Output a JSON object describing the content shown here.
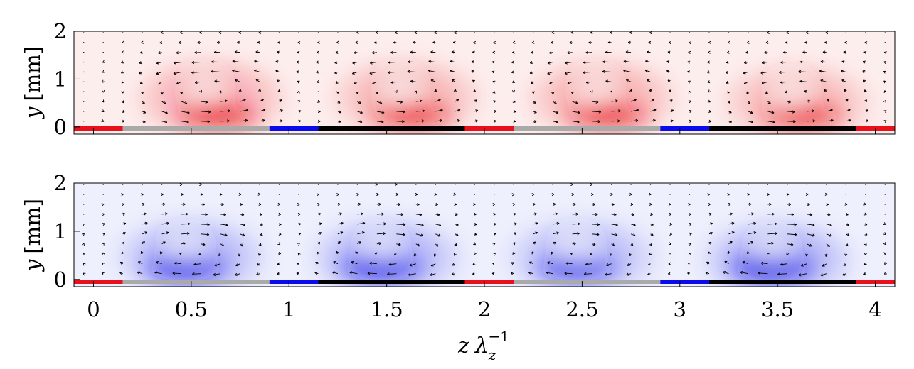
{
  "chart_data": [
    {
      "type": "contour-quiver",
      "panel": "top",
      "field_color": "#e8101a",
      "field_sign": "positive",
      "xlim": [
        -0.1,
        4.1
      ],
      "ylim": [
        -0.15,
        2
      ],
      "ylabel": "y [mm]",
      "ylabel_var": "y",
      "ylabel_unit": "[mm]",
      "yticks": [
        "0",
        "1",
        "2"
      ],
      "vortices": [
        {
          "z": 0.6,
          "y": 0.75,
          "strength": 1.0
        },
        {
          "z": 1.6,
          "y": 0.75,
          "strength": 0.9
        },
        {
          "z": 2.6,
          "y": 0.75,
          "strength": 0.95
        },
        {
          "z": 3.6,
          "y": 0.65,
          "strength": 0.85
        }
      ],
      "wall_segments": [
        {
          "z0": -0.1,
          "z1": 0.15,
          "color": "#e8101a"
        },
        {
          "z0": 0.15,
          "z1": 0.9,
          "color": "#aaaaaa"
        },
        {
          "z0": 0.9,
          "z1": 1.15,
          "color": "#0a0aeb"
        },
        {
          "z0": 1.15,
          "z1": 1.9,
          "color": "#000000"
        },
        {
          "z0": 1.9,
          "z1": 2.15,
          "color": "#e8101a"
        },
        {
          "z0": 2.15,
          "z1": 2.9,
          "color": "#aaaaaa"
        },
        {
          "z0": 2.9,
          "z1": 3.15,
          "color": "#0a0aeb"
        },
        {
          "z0": 3.15,
          "z1": 3.9,
          "color": "#000000"
        },
        {
          "z0": 3.9,
          "z1": 4.1,
          "color": "#e8101a"
        }
      ]
    },
    {
      "type": "contour-quiver",
      "panel": "bottom",
      "field_color": "#1414e6",
      "field_sign": "negative",
      "xlim": [
        -0.1,
        4.1
      ],
      "ylim": [
        -0.15,
        2
      ],
      "ylabel": "y [mm]",
      "ylabel_var": "y",
      "ylabel_unit": "[mm]",
      "yticks": [
        "0",
        "1",
        "2"
      ],
      "xticks": [
        "0",
        "0.5",
        "1",
        "1.5",
        "2",
        "2.5",
        "3",
        "3.5",
        "4"
      ],
      "xlabel_var": "z",
      "xlabel_sym": "λ",
      "xlabel_sub": "z",
      "xlabel_sup": "−1",
      "vortices": [
        {
          "z": 0.5,
          "y": 0.6,
          "strength": 0.9
        },
        {
          "z": 1.5,
          "y": 0.6,
          "strength": 0.95
        },
        {
          "z": 2.5,
          "y": 0.6,
          "strength": 0.8
        },
        {
          "z": 3.5,
          "y": 0.55,
          "strength": 1.0
        }
      ],
      "wall_segments": [
        {
          "z0": -0.1,
          "z1": 0.15,
          "color": "#e8101a"
        },
        {
          "z0": 0.15,
          "z1": 0.9,
          "color": "#aaaaaa"
        },
        {
          "z0": 0.9,
          "z1": 1.15,
          "color": "#0a0aeb"
        },
        {
          "z0": 1.15,
          "z1": 1.9,
          "color": "#000000"
        },
        {
          "z0": 1.9,
          "z1": 2.15,
          "color": "#e8101a"
        },
        {
          "z0": 2.15,
          "z1": 2.9,
          "color": "#aaaaaa"
        },
        {
          "z0": 2.9,
          "z1": 3.15,
          "color": "#0a0aeb"
        },
        {
          "z0": 3.15,
          "z1": 3.9,
          "color": "#000000"
        },
        {
          "z0": 3.9,
          "z1": 4.1,
          "color": "#e8101a"
        }
      ]
    }
  ]
}
